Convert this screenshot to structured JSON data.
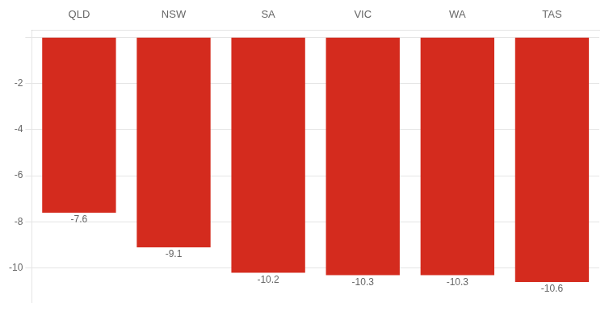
{
  "chart_data": {
    "type": "bar",
    "categories": [
      "QLD",
      "NSW",
      "SA",
      "VIC",
      "WA",
      "TAS"
    ],
    "values": [
      -7.6,
      -9.1,
      -10.2,
      -10.3,
      -10.3,
      -10.6
    ],
    "color": "#d42b1e",
    "ylim": [
      -11.5,
      0.3
    ],
    "yticks": [
      {
        "value": 0,
        "label": ""
      },
      -2,
      -4,
      -6,
      -8,
      -10
    ],
    "grid": true,
    "data_labels": true
  }
}
